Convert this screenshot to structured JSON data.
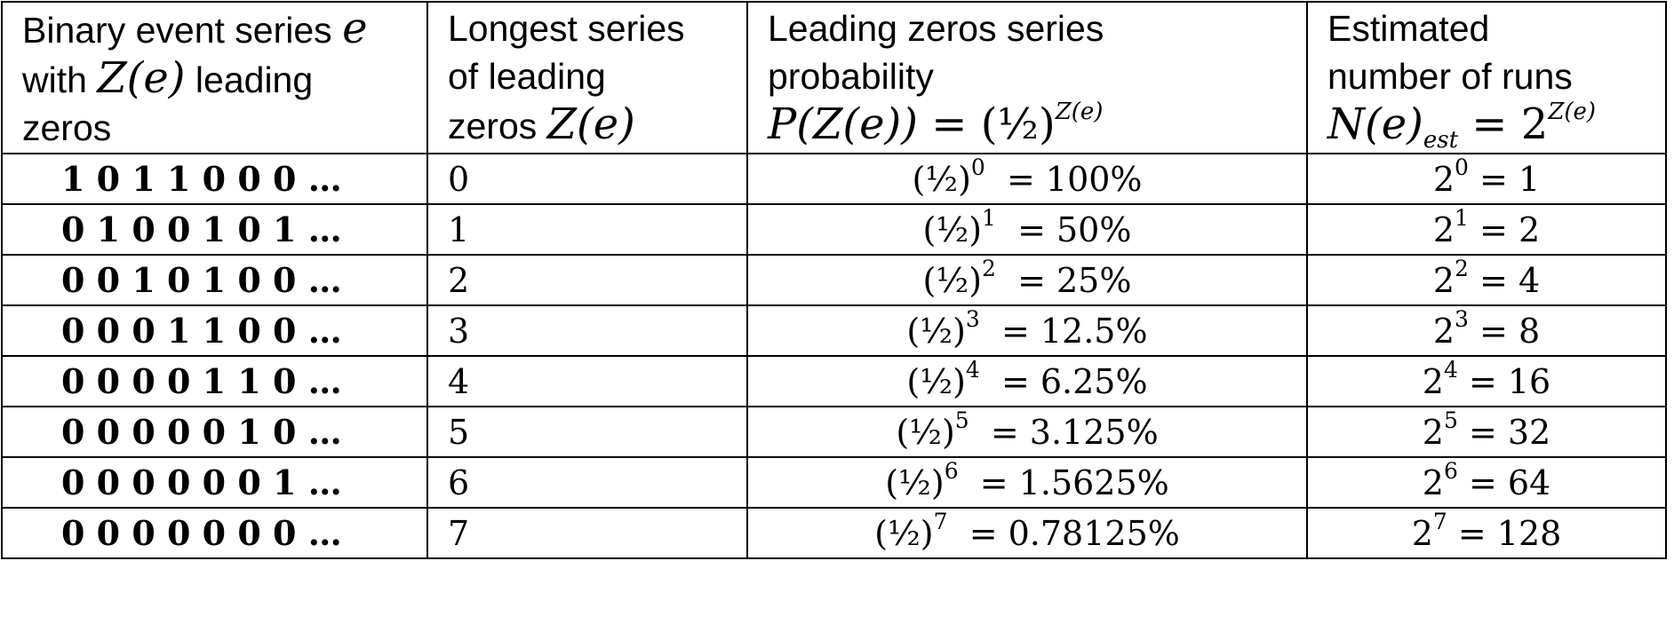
{
  "header": {
    "col1_line1": "Binary event series ",
    "col1_var_e": "e",
    "col1_line2_a": "with ",
    "col1_line2_math": "Z(e)",
    "col1_line2_b": " leading",
    "col1_line3": "zeros",
    "col2_line1": "Longest series",
    "col2_line2": "of leading",
    "col2_line3_a": "zeros ",
    "col2_line3_math": "Z(e)",
    "col3_line1": "Leading zeros series",
    "col3_line2": "probability",
    "col3_formula_lhs": "P(Z(e)) = ",
    "col3_formula_base": " (½)",
    "col3_formula_exp": "Z(e)",
    "col4_line1": "Estimated",
    "col4_line2": "number of runs",
    "col4_formula_lhs": "N(e)",
    "col4_formula_sub": "est",
    "col4_formula_mid": " =  2",
    "col4_formula_exp": "Z(e)"
  },
  "rows": [
    {
      "series": "1 0 1 1 0 0 0 …",
      "zeros": "0",
      "prob_base": "(½)",
      "prob_exp": "0",
      "prob_value": "  = 100%",
      "runs_base": "2",
      "runs_exp": "0",
      "runs_value": " = 1"
    },
    {
      "series": "0 1 0 0 1 0 1 …",
      "zeros": "1",
      "prob_base": "(½)",
      "prob_exp": "1",
      "prob_value": "  = 50%",
      "runs_base": "2",
      "runs_exp": "1",
      "runs_value": " = 2"
    },
    {
      "series": "0 0 1 0 1 0 0 …",
      "zeros": "2",
      "prob_base": "(½)",
      "prob_exp": "2",
      "prob_value": "  = 25%",
      "runs_base": "2",
      "runs_exp": "2",
      "runs_value": " = 4"
    },
    {
      "series": "0 0 0 1 1 0 0 …",
      "zeros": "3",
      "prob_base": "(½)",
      "prob_exp": "3",
      "prob_value": "  = 12.5%",
      "runs_base": "2",
      "runs_exp": "3",
      "runs_value": " = 8"
    },
    {
      "series": "0 0 0 0 1 1 0 …",
      "zeros": "4",
      "prob_base": "(½)",
      "prob_exp": "4",
      "prob_value": "  = 6.25%",
      "runs_base": "2",
      "runs_exp": "4",
      "runs_value": " = 16"
    },
    {
      "series": "0 0 0 0 0 1 0 …",
      "zeros": "5",
      "prob_base": "(½)",
      "prob_exp": "5",
      "prob_value": "  = 3.125%",
      "runs_base": "2",
      "runs_exp": "5",
      "runs_value": " = 32"
    },
    {
      "series": "0 0 0 0 0 0 1 …",
      "zeros": "6",
      "prob_base": "(½)",
      "prob_exp": "6",
      "prob_value": "  = 1.5625%",
      "runs_base": "2",
      "runs_exp": "6",
      "runs_value": " = 64"
    },
    {
      "series": "0 0 0 0 0 0 0 …",
      "zeros": "7",
      "prob_base": "(½)",
      "prob_exp": "7",
      "prob_value": "  = 0.78125%",
      "runs_base": "2",
      "runs_exp": "7",
      "runs_value": " = 128"
    }
  ]
}
